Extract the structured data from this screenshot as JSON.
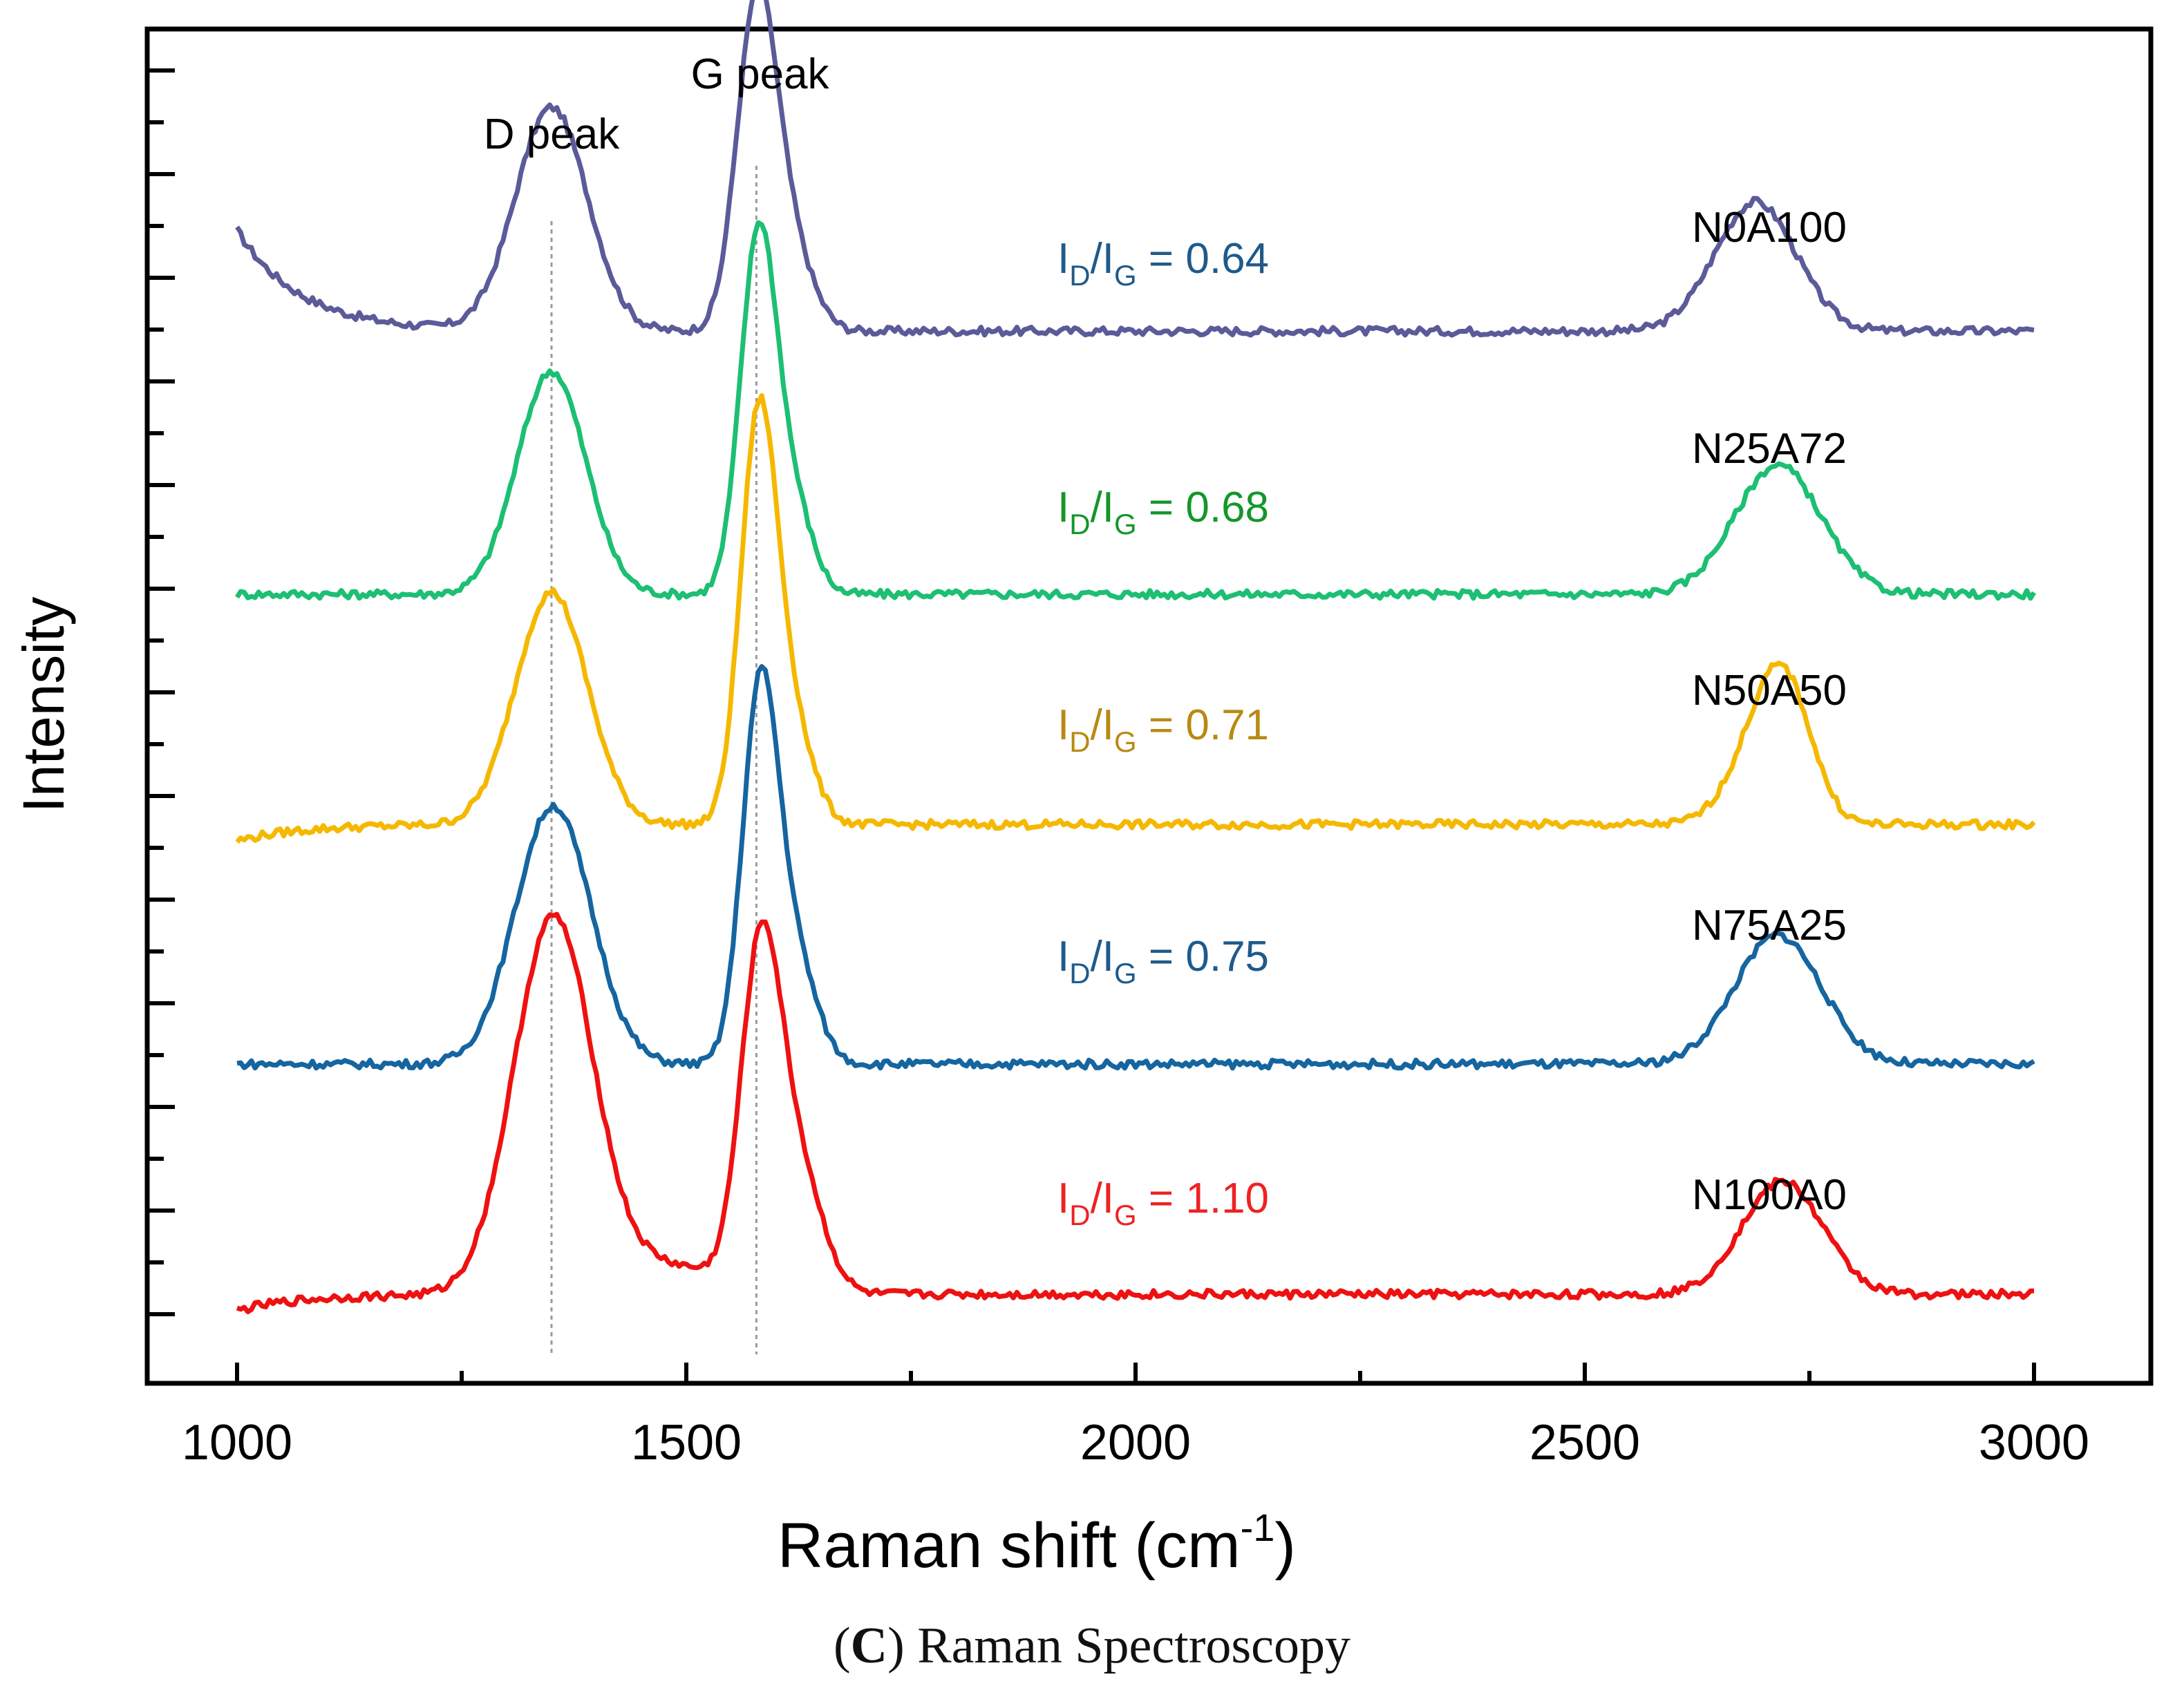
{
  "chart_data": {
    "type": "line",
    "xlabel": "Raman shift (cm",
    "xlabel_sup": "-1",
    "xlabel_close": ")",
    "ylabel": "Intensity",
    "xlim": [
      900,
      3130
    ],
    "xticks": [
      1000,
      1500,
      2000,
      2500,
      3000
    ],
    "tick_labels": [
      "1000",
      "1500",
      "2000",
      "2500",
      "3000"
    ],
    "yaxis_ticks_labeled": false,
    "peak_labels": [
      {
        "text": "D peak",
        "x": 1350
      },
      {
        "text": "G peak",
        "x": 1582
      }
    ],
    "ratio_prefix": "I",
    "ratio_sub_d": "D",
    "ratio_slash": "/I",
    "ratio_sub_g": "G",
    "ratio_eq": " = ",
    "series": [
      {
        "name": "N0A100",
        "ratio": "0.64",
        "color": "#5b5b9a",
        "text_color": "#1f5a8a",
        "offset": 4,
        "baseline_start": 0.55,
        "baseline": 0.12,
        "peaks": [
          [
            1350,
            0.95,
            40
          ],
          [
            1578,
            1.35,
            22
          ],
          [
            1615,
            0.35,
            25
          ],
          [
            2690,
            0.55,
            45
          ]
        ]
      },
      {
        "name": "N25A72",
        "ratio": "0.68",
        "color": "#1dbf73",
        "text_color": "#15962a",
        "offset": 3,
        "baseline_start": 0.0,
        "baseline": 0.0,
        "peaks": [
          [
            1350,
            0.95,
            38
          ],
          [
            1580,
            1.5,
            20
          ],
          [
            1618,
            0.38,
            22
          ],
          [
            2715,
            0.55,
            48
          ]
        ]
      },
      {
        "name": "N50A50",
        "ratio": "0.71",
        "color": "#f5b800",
        "text_color": "#b88a14",
        "offset": 2,
        "baseline_start": -0.05,
        "baseline": 0.02,
        "peaks": [
          [
            1350,
            0.99,
            40
          ],
          [
            1580,
            1.65,
            20
          ],
          [
            1615,
            0.45,
            24
          ],
          [
            2695,
            0.3,
            35
          ],
          [
            2725,
            0.45,
            30
          ]
        ]
      },
      {
        "name": "N75A25",
        "ratio": "0.75",
        "color": "#1565a0",
        "text_color": "#1f5a8a",
        "offset": 1,
        "baseline_start": 0.0,
        "baseline": 0.0,
        "peaks": [
          [
            1352,
            1.1,
            42
          ],
          [
            1582,
            1.55,
            20
          ],
          [
            1620,
            0.45,
            24
          ],
          [
            2715,
            0.55,
            48
          ]
        ]
      },
      {
        "name": "N100A0",
        "ratio": "1.10",
        "color": "#ee1111",
        "text_color": "#ee2222",
        "offset": 0,
        "baseline_start": -0.05,
        "baseline": 0.02,
        "peaks": [
          [
            1352,
            1.6,
            44
          ],
          [
            1582,
            1.35,
            22
          ],
          [
            1622,
            0.55,
            28
          ],
          [
            1480,
            0.12,
            60
          ],
          [
            2720,
            0.48,
            45
          ]
        ]
      }
    ]
  },
  "caption": {
    "letter": "C",
    "text": "Raman Spectroscopy"
  }
}
